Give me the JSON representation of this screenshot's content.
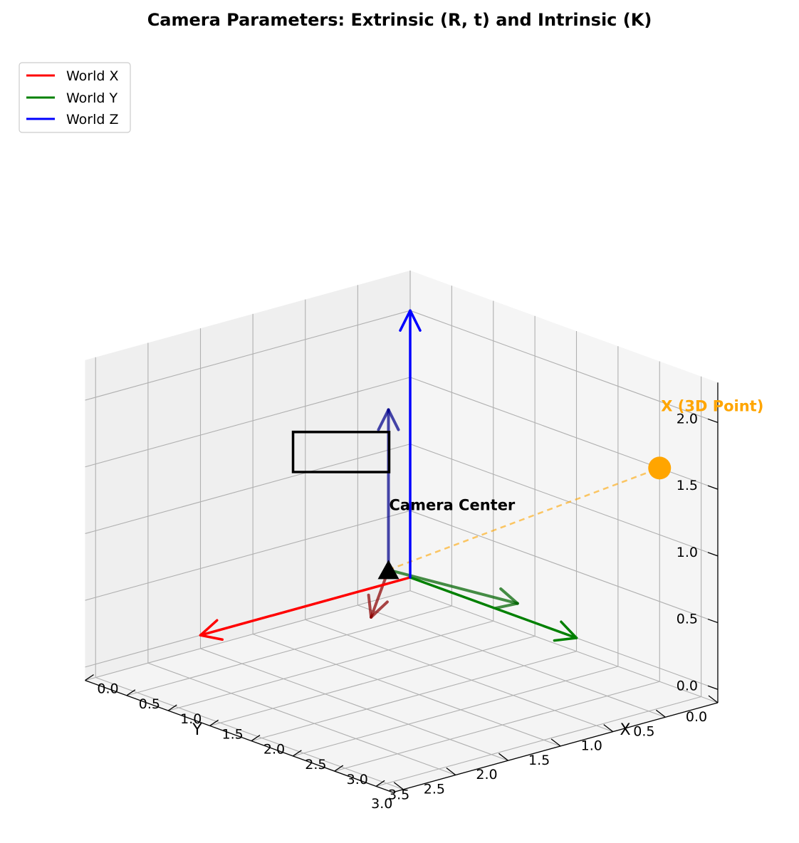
{
  "chart_data": {
    "type": "3d-line",
    "title": "Camera Parameters: Extrinsic (R, t) and Intrinsic (K)",
    "xlabel": "X",
    "ylabel": "Y",
    "zlabel": "",
    "xlim": [
      0,
      3.7
    ],
    "ylim": [
      0,
      3.1
    ],
    "zlim": [
      -0.1,
      2.3
    ],
    "x_ticks": [
      "0.0",
      "0.5",
      "1.0",
      "1.5",
      "2.0",
      "2.5",
      "3.0",
      "3.5"
    ],
    "y_ticks": [
      "0.0",
      "0.5",
      "1.0",
      "1.5",
      "2.0",
      "2.5",
      "3.0"
    ],
    "z_ticks": [
      "0.0",
      "0.5",
      "1.0",
      "1.5",
      "2.0"
    ],
    "grid": true,
    "legend_position": "top-left",
    "legend": [
      {
        "name": "World X",
        "color": "#ff0000"
      },
      {
        "name": "World Y",
        "color": "#008000"
      },
      {
        "name": "World Z",
        "color": "#0000ff"
      }
    ],
    "world_axes": [
      {
        "name": "World X",
        "color": "#ff0000",
        "from": [
          0,
          0,
          0
        ],
        "to": [
          0,
          2,
          0
        ]
      },
      {
        "name": "World Y",
        "color": "#008000",
        "from": [
          0,
          0,
          0
        ],
        "to": [
          2,
          0,
          0
        ]
      },
      {
        "name": "World Z",
        "color": "#0000ff",
        "from": [
          0,
          0,
          0
        ],
        "to": [
          0,
          0,
          2
        ]
      }
    ],
    "camera_axes": [
      {
        "color": "#8b0000",
        "from": [
          1,
          1,
          0.5
        ],
        "to": [
          1.8,
          1.8,
          0.5
        ]
      },
      {
        "color": "#006400",
        "from": [
          1,
          1,
          0.5
        ],
        "to": [
          2.3,
          0.8,
          0.5
        ]
      },
      {
        "color": "#00008b",
        "from": [
          1,
          1,
          0.5
        ],
        "to": [
          1,
          1,
          1.7
        ]
      }
    ],
    "camera_center": {
      "point": [
        1,
        1,
        0.5
      ],
      "label": "Camera Center"
    },
    "image_plane": [
      [
        0.42,
        1.45,
        1.5
      ],
      [
        0.92,
        0.93,
        1.5
      ],
      [
        0.92,
        0.93,
        1.2
      ],
      [
        0.42,
        1.45,
        1.2
      ]
    ],
    "point_3d": {
      "point": [
        3,
        0,
        1.5
      ],
      "label": "X (3D Point)",
      "color": "#ffa500"
    },
    "projection_ray": {
      "from": [
        1,
        1,
        0.5
      ],
      "to": [
        3,
        0,
        1.5
      ],
      "color": "#ffa500"
    }
  }
}
